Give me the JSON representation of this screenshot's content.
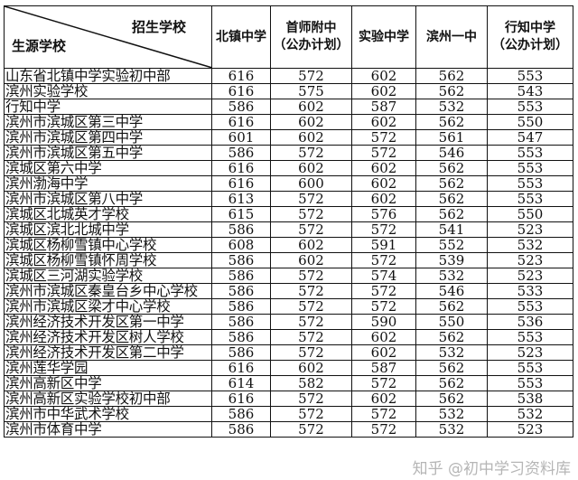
{
  "header": {
    "corner_top": "招生学校",
    "corner_bottom": "生源学校",
    "columns": [
      [
        "北镇中学",
        ""
      ],
      [
        "首师附中",
        "（公办计划）"
      ],
      [
        "实验中学",
        ""
      ],
      [
        "滨州一中",
        ""
      ],
      [
        "行知中学",
        "（公办计划）"
      ]
    ]
  },
  "rows": [
    [
      "山东省北镇中学实验初中部",
      "616",
      "572",
      "602",
      "562",
      "553"
    ],
    [
      "滨州实验学校",
      "616",
      "575",
      "602",
      "562",
      "543"
    ],
    [
      "行知中学",
      "586",
      "602",
      "587",
      "532",
      "553"
    ],
    [
      "滨州市滨城区第三中学",
      "616",
      "602",
      "602",
      "562",
      "550"
    ],
    [
      "滨州市滨城区第四中学",
      "601",
      "602",
      "572",
      "561",
      "547"
    ],
    [
      "滨州市滨城区第五中学",
      "586",
      "572",
      "572",
      "546",
      "553"
    ],
    [
      "滨城区第六中学",
      "616",
      "602",
      "602",
      "562",
      "553"
    ],
    [
      "滨州渤海中学",
      "616",
      "600",
      "602",
      "562",
      "553"
    ],
    [
      "滨州市滨城区第八中学",
      "613",
      "572",
      "602",
      "562",
      "553"
    ],
    [
      "滨城区北城英才学校",
      "615",
      "572",
      "576",
      "562",
      "550"
    ],
    [
      "滨城区滨北北城中学",
      "586",
      "572",
      "572",
      "541",
      "523"
    ],
    [
      "滨城区杨柳雪镇中心学校",
      "608",
      "602",
      "591",
      "552",
      "532"
    ],
    [
      "滨城区杨柳雪镇怀周学校",
      "586",
      "602",
      "572",
      "539",
      "523"
    ],
    [
      "滨城区三河湖实验学校",
      "586",
      "572",
      "574",
      "532",
      "523"
    ],
    [
      "滨州市滨城区秦皇台乡中心学校",
      "586",
      "572",
      "572",
      "546",
      "533"
    ],
    [
      "滨州市滨城区梁才中心学校",
      "586",
      "572",
      "572",
      "562",
      "553"
    ],
    [
      "滨州经济技术开发区第一中学",
      "586",
      "572",
      "590",
      "550",
      "536"
    ],
    [
      "滨州经济技术开发区树人学校",
      "586",
      "572",
      "602",
      "562",
      "553"
    ],
    [
      "滨州经济技术开发区第二中学",
      "586",
      "572",
      "602",
      "532",
      "523"
    ],
    [
      "滨州莲华学园",
      "616",
      "602",
      "587",
      "562",
      "553"
    ],
    [
      "滨州高新区中学",
      "614",
      "582",
      "572",
      "562",
      "553"
    ],
    [
      "滨州高新区实验学校初中部",
      "616",
      "572",
      "602",
      "562",
      "538"
    ],
    [
      "滨州市中华武术学校",
      "586",
      "572",
      "572",
      "532",
      "532"
    ],
    [
      "滨州市体育中学",
      "586",
      "572",
      "572",
      "532",
      "523"
    ]
  ],
  "watermark": "知乎 @初中学习资料库"
}
